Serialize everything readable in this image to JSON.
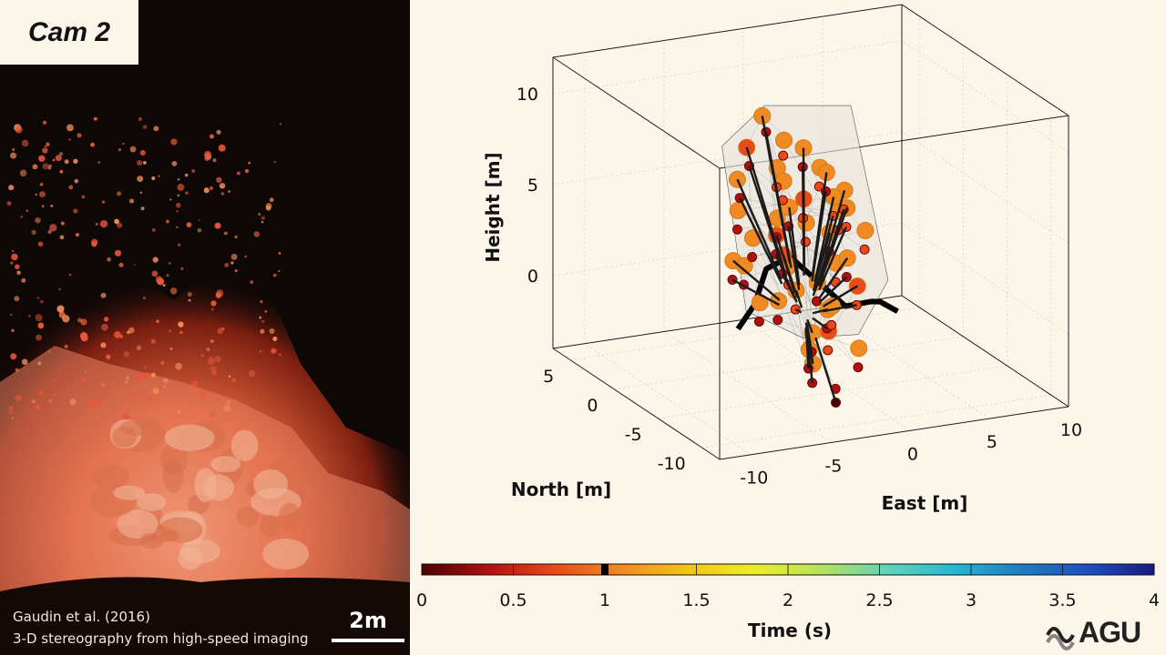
{
  "camera": {
    "label": "Cam 2",
    "credit_author": "Gaudin et al. (2016)",
    "credit_method": "3-D stereography from high-speed imaging",
    "scale_label": "2m"
  },
  "chart_data": {
    "type": "scatter",
    "projection": "3d",
    "axes": {
      "east": {
        "label": "East [m]",
        "ticks": [
          -10,
          -5,
          0,
          5,
          10
        ],
        "range": [
          -12,
          10
        ]
      },
      "north": {
        "label": "North [m]",
        "ticks": [
          -10,
          -5,
          0,
          5
        ],
        "range": [
          -12,
          7
        ]
      },
      "height": {
        "label": "Height [m]",
        "ticks": [
          0,
          5,
          10
        ],
        "range": [
          -4,
          12
        ]
      }
    },
    "grid": true,
    "colorbar": {
      "label": "Time (s)",
      "ticks": [
        0,
        0.5,
        1,
        1.5,
        2,
        2.5,
        3,
        3.5,
        4
      ],
      "range": [
        0,
        4
      ],
      "current_time": 1.0,
      "colors": [
        "#4a0000",
        "#b01010",
        "#e84a1a",
        "#f08a22",
        "#f3c419",
        "#eded2a",
        "#b6e060",
        "#60d4b8",
        "#28b6d4",
        "#1e7ec0",
        "#1d4ec0",
        "#1a1a80"
      ]
    },
    "series": [
      {
        "values": [
          [
            -2.4,
            0.5,
            9.6,
            0.95
          ],
          [
            -1.2,
            0.2,
            8.2,
            0.92
          ],
          [
            -3.1,
            1.0,
            7.8,
            0.9
          ],
          [
            -2.0,
            -0.5,
            7.0,
            0.94
          ],
          [
            -3.8,
            0.8,
            6.2,
            0.93
          ],
          [
            -1.0,
            0.6,
            5.8,
            0.95
          ],
          [
            0.2,
            0.5,
            7.5,
            0.96
          ],
          [
            0.8,
            -0.3,
            6.6,
            0.92
          ],
          [
            1.6,
            0.4,
            6.0,
            0.93
          ],
          [
            -0.5,
            -0.8,
            5.2,
            0.9
          ],
          [
            2.4,
            -0.2,
            5.1,
            0.95
          ],
          [
            -2.5,
            -1.4,
            4.6,
            0.92
          ],
          [
            -0.2,
            1.4,
            4.0,
            0.94
          ],
          [
            1.5,
            -1.2,
            4.4,
            0.91
          ],
          [
            3.0,
            0.6,
            3.8,
            0.95
          ],
          [
            -3.6,
            -0.6,
            3.4,
            0.93
          ],
          [
            -1.6,
            0.3,
            3.0,
            0.9
          ],
          [
            0.6,
            0.9,
            3.2,
            0.92
          ],
          [
            2.2,
            1.1,
            2.4,
            0.94
          ],
          [
            3.6,
            -0.4,
            2.8,
            0.96
          ],
          [
            -4.4,
            0.2,
            2.0,
            0.91
          ],
          [
            -2.2,
            -2.2,
            2.2,
            0.93
          ],
          [
            -0.8,
            1.0,
            1.6,
            0.9
          ],
          [
            1.0,
            -1.8,
            1.8,
            0.95
          ],
          [
            2.8,
            0.2,
            1.2,
            0.92
          ],
          [
            -3.2,
            -2.8,
            0.6,
            0.94
          ],
          [
            -1.2,
            -1.2,
            0.4,
            0.91
          ],
          [
            0.8,
            0.0,
            0.2,
            0.93
          ],
          [
            2.0,
            -2.4,
            0.6,
            0.9
          ],
          [
            -2.6,
            0.4,
            -0.6,
            0.92
          ],
          [
            -0.2,
            -3.0,
            -0.2,
            0.94
          ],
          [
            1.4,
            -0.6,
            -1.0,
            0.95
          ],
          [
            -1.4,
            -3.4,
            -1.2,
            0.93
          ],
          [
            0.4,
            -2.0,
            -1.8,
            0.9
          ],
          [
            -0.6,
            -1.6,
            -2.8,
            0.92
          ],
          [
            1.2,
            -4.0,
            -2.2,
            0.94
          ],
          [
            -1.8,
            -4.2,
            -2.6,
            0.91
          ],
          [
            -2.8,
            1.8,
            1.0,
            0.93
          ],
          [
            2.6,
            1.4,
            4.2,
            0.95
          ],
          [
            -4.2,
            0.0,
            4.8,
            0.92
          ],
          [
            -2.6,
            -0.3,
            9.0,
            0.5
          ],
          [
            -1.3,
            0.1,
            7.4,
            0.55
          ],
          [
            -3.0,
            0.9,
            6.8,
            0.48
          ],
          [
            -2.1,
            -0.6,
            6.0,
            0.6
          ],
          [
            -3.7,
            0.7,
            5.2,
            0.52
          ],
          [
            -1.1,
            0.5,
            4.8,
            0.58
          ],
          [
            0.1,
            0.4,
            6.5,
            0.45
          ],
          [
            0.7,
            -0.4,
            5.6,
            0.62
          ],
          [
            1.5,
            0.3,
            5.0,
            0.5
          ],
          [
            -0.6,
            -0.9,
            4.2,
            0.56
          ],
          [
            2.3,
            -0.3,
            4.1,
            0.6
          ],
          [
            -2.6,
            -1.5,
            3.6,
            0.5
          ],
          [
            -0.3,
            1.3,
            3.0,
            0.45
          ],
          [
            1.4,
            -1.3,
            3.4,
            0.6
          ],
          [
            2.9,
            0.5,
            2.8,
            0.55
          ],
          [
            -3.7,
            -0.7,
            2.4,
            0.5
          ],
          [
            -1.7,
            0.2,
            2.0,
            0.52
          ],
          [
            0.5,
            0.8,
            2.2,
            0.58
          ],
          [
            2.1,
            1.0,
            1.4,
            0.5
          ],
          [
            3.5,
            -0.5,
            1.8,
            0.6
          ],
          [
            -4.5,
            0.1,
            1.0,
            0.48
          ],
          [
            -2.3,
            -2.3,
            1.2,
            0.55
          ],
          [
            -0.9,
            0.9,
            0.6,
            0.5
          ],
          [
            0.9,
            -1.9,
            0.8,
            0.6
          ],
          [
            2.7,
            0.1,
            0.2,
            0.52
          ],
          [
            -3.3,
            -2.9,
            -0.4,
            0.5
          ],
          [
            -1.3,
            -1.3,
            -0.6,
            0.56
          ],
          [
            0.7,
            -0.1,
            -0.8,
            0.5
          ],
          [
            1.9,
            -2.5,
            -0.4,
            0.6
          ],
          [
            -2.7,
            0.3,
            -1.6,
            0.5
          ],
          [
            -0.3,
            -3.1,
            -1.2,
            0.48
          ],
          [
            1.3,
            -0.7,
            -2.0,
            0.55
          ],
          [
            -1.5,
            -3.5,
            -2.2,
            0.5
          ],
          [
            0.3,
            -2.1,
            -2.8,
            0.6
          ],
          [
            -0.7,
            -1.7,
            -3.8,
            0.2
          ],
          [
            1.1,
            -4.1,
            -3.2,
            0.3
          ],
          [
            -1.9,
            -4.3,
            -3.6,
            0.25
          ],
          [
            -2.9,
            1.7,
            0.0,
            0.5
          ],
          [
            2.5,
            1.3,
            3.2,
            0.55
          ],
          [
            -4.3,
            -0.1,
            3.8,
            0.5
          ],
          [
            -0.8,
            -5.0,
            -4.6,
            0.05
          ],
          [
            -0.6,
            -4.6,
            -4.0,
            0.35
          ]
        ]
      }
    ],
    "source_surface": {
      "note": "translucent triangulated envelope around the particle cloud, bright rim at ground level"
    }
  },
  "logo": {
    "name": "agu-logo",
    "text": "AGU"
  }
}
